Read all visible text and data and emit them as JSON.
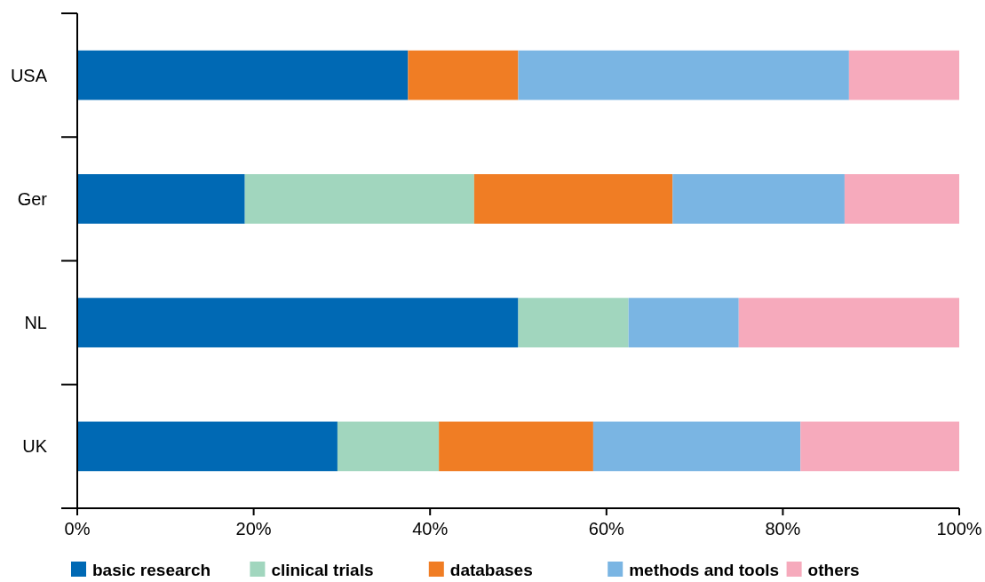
{
  "chart_data": {
    "type": "bar",
    "orientation": "horizontal",
    "stacked": true,
    "categories": [
      "USA",
      "Ger",
      "NL",
      "UK"
    ],
    "series": [
      {
        "name": "basic research",
        "color": "#0069b4",
        "values": [
          37.5,
          19,
          50,
          29.5
        ]
      },
      {
        "name": "clinical trials",
        "color": "#a1d6be",
        "values": [
          null,
          26,
          12.5,
          11.5
        ]
      },
      {
        "name": "databases",
        "color": "#f07d24",
        "values": [
          12.5,
          22.5,
          null,
          17.5
        ]
      },
      {
        "name": "methods and tools",
        "color": "#7ab5e3",
        "values": [
          37.5,
          19.5,
          12.5,
          23.5
        ]
      },
      {
        "name": "others",
        "color": "#f6aabc",
        "values": [
          12.5,
          13,
          25,
          18
        ]
      }
    ],
    "xlim": [
      0,
      100
    ],
    "xticks": [
      {
        "value": 0,
        "label": "0%"
      },
      {
        "value": 20,
        "label": "20%"
      },
      {
        "value": 40,
        "label": "40%"
      },
      {
        "value": 60,
        "label": "60%"
      },
      {
        "value": 80,
        "label": "80%"
      },
      {
        "value": 100,
        "label": "100%"
      }
    ],
    "legend": "bottom"
  }
}
